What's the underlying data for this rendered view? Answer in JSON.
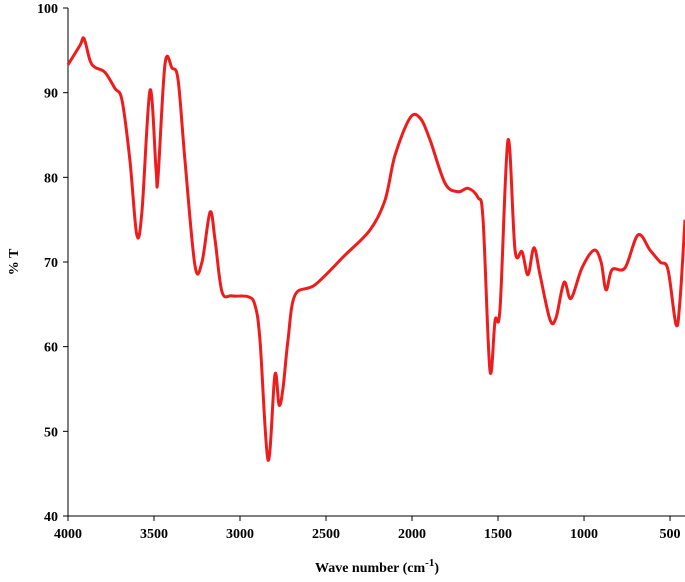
{
  "chart_data": {
    "type": "line",
    "xlabel": {
      "text": "Wave number (cm",
      "sup": "-1",
      "end": ")"
    },
    "ylabel": "% T",
    "xlim": [
      4000,
      413
    ],
    "xticks": [
      4000,
      3500,
      3000,
      2500,
      2000,
      1500,
      1000,
      500
    ],
    "ylim": [
      40,
      100
    ],
    "yticks": [
      40,
      50,
      60,
      70,
      80,
      90,
      100
    ],
    "series": [
      {
        "color": "#ee1c1c",
        "x": [
          4000,
          3930,
          3907,
          3872,
          3843,
          3785,
          3727,
          3686,
          3640,
          3600,
          3570,
          3523,
          3488,
          3477,
          3436,
          3395,
          3360,
          3320,
          3262,
          3221,
          3174,
          3145,
          3105,
          3047,
          2953,
          2913,
          2884,
          2837,
          2797,
          2773,
          2750,
          2721,
          2680,
          2564,
          2390,
          2244,
          2157,
          2099,
          2012,
          1953,
          1895,
          1808,
          1733,
          1674,
          1616,
          1587,
          1547,
          1517,
          1488,
          1442,
          1401,
          1360,
          1326,
          1291,
          1256,
          1198,
          1163,
          1116,
          1076,
          1012,
          942,
          901,
          872,
          837,
          762,
          686,
          616,
          558,
          512,
          465,
          442,
          413
        ],
        "values": [
          93.3,
          95.6,
          96.4,
          93.8,
          93.0,
          92.4,
          90.5,
          89.1,
          82,
          73.2,
          76,
          90.3,
          80.9,
          79.9,
          93.4,
          92.9,
          91.5,
          82,
          69.6,
          70,
          75.9,
          72.6,
          66.5,
          66,
          65.9,
          64.9,
          60.8,
          46.6,
          56.7,
          53.1,
          55.1,
          60.8,
          66.1,
          67.3,
          70.8,
          73.8,
          77.3,
          82.6,
          87,
          87,
          84.4,
          79.3,
          78.3,
          78.7,
          77.6,
          75,
          57.2,
          63.1,
          64.6,
          84.4,
          71.4,
          71.2,
          68.5,
          71.7,
          68.5,
          63.2,
          63.4,
          67.6,
          65.7,
          69.3,
          71.4,
          70,
          66.7,
          69.1,
          69.3,
          73.2,
          71.4,
          70,
          69.1,
          62.6,
          65.5,
          75
        ]
      }
    ]
  }
}
